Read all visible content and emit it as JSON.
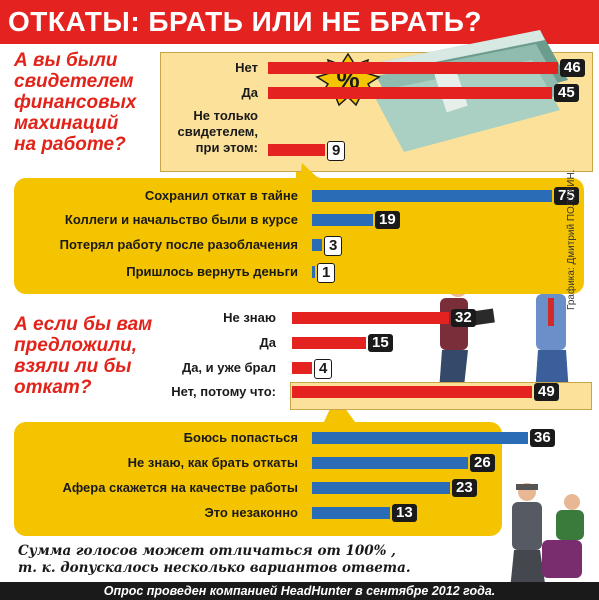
{
  "title": "ОТКАТЫ: БРАТЬ ИЛИ НЕ БРАТЬ?",
  "credit": "Графика: Дмитрий ПОЛУХИН.",
  "footnote": "Сумма голосов может отличаться от 100% ,\nт. к. допускалось несколько вариантов ответа.",
  "source": "Опрос проведен компанией HeadHunter в сентябре 2012 года.",
  "percent_sign": "%",
  "colors": {
    "red": "#e42320",
    "blue": "#2a6cb5",
    "yellow": "#f5c400",
    "highlight": "#fbe19a"
  },
  "icons": [
    "money-stack-icon",
    "percent-badge-icon",
    "businessmen-handshake-icon",
    "arrest-icon"
  ],
  "chart_data": [
    {
      "type": "bar",
      "title": "А вы были\nсвидетелем\nфинансовых\nмахинаций\nна работе?",
      "categories": [
        "Нет",
        "Да",
        "Не только\nсвидетелем,\nпри этом:"
      ],
      "values": [
        46,
        45,
        9
      ],
      "color": "#e42320"
    },
    {
      "type": "bar",
      "categories": [
        "Сохранил откат в тайне",
        "Коллеги и начальство были в курсе",
        "Потерял работу после разоблачения",
        "Пришлось вернуть деньги"
      ],
      "values": [
        75,
        19,
        3,
        1
      ],
      "color": "#2a6cb5"
    },
    {
      "type": "bar",
      "title": "А если бы вам\nпредложили,\nвзяли ли бы\nоткат?",
      "categories": [
        "Не знаю",
        "Да",
        "Да, и уже брал",
        "Нет, потому что:"
      ],
      "values": [
        32,
        15,
        4,
        49
      ],
      "color": "#e42320"
    },
    {
      "type": "bar",
      "categories": [
        "Боюсь попасться",
        "Не знаю, как брать откаты",
        "Афера скажется на качестве работы",
        "Это незаконно"
      ],
      "values": [
        36,
        26,
        23,
        13
      ],
      "color": "#2a6cb5"
    }
  ]
}
